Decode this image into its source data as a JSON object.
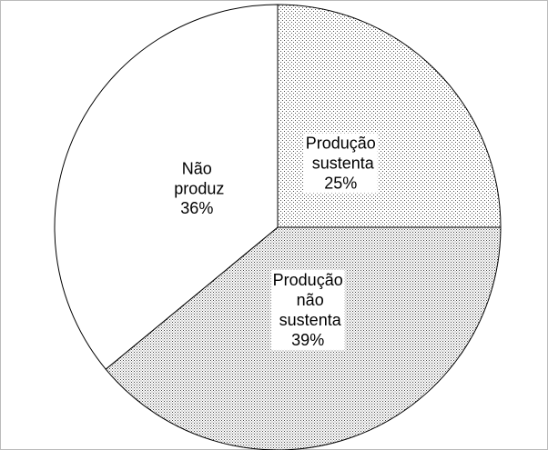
{
  "chart_data": {
    "type": "pie",
    "categories": [
      "Produção sustenta",
      "Produção não sustenta",
      "Não produz"
    ],
    "values": [
      25,
      39,
      36
    ],
    "value_labels": [
      "25%",
      "39%",
      "36%"
    ],
    "patterns": [
      "dots-sparse",
      "dots-dense",
      "none"
    ]
  }
}
